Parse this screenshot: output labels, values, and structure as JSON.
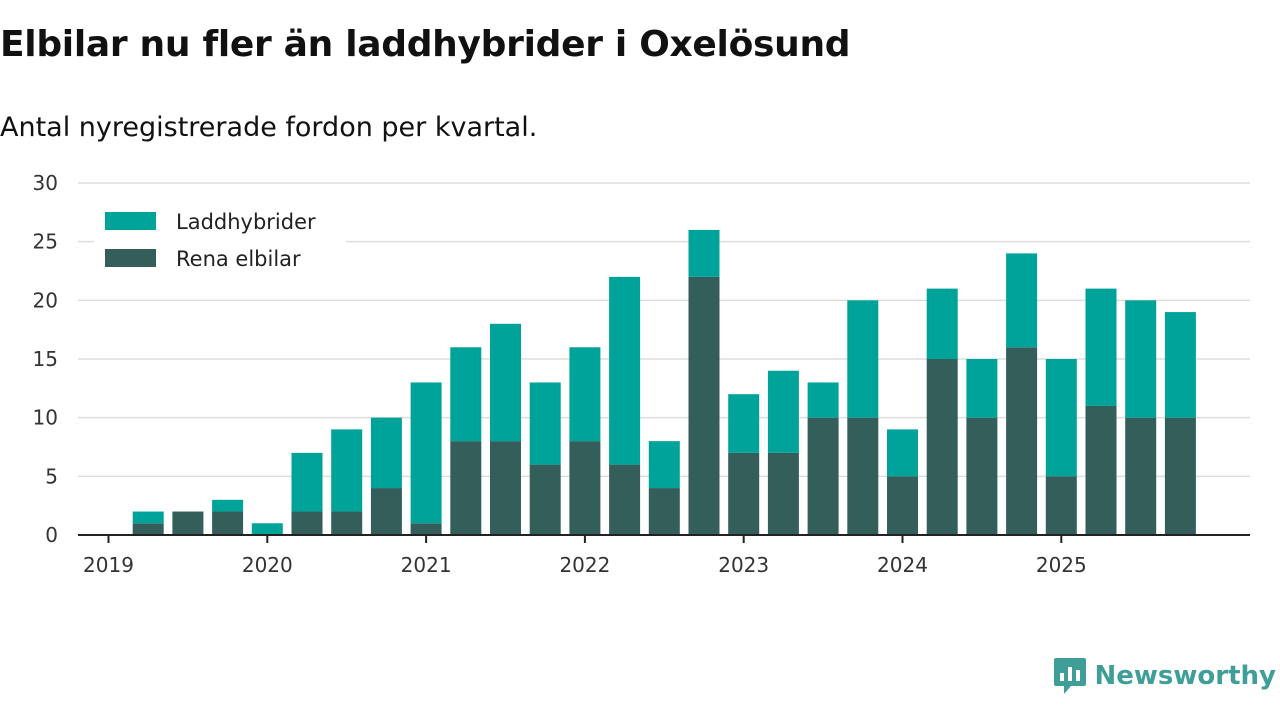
{
  "title": "Elbilar nu fler än laddhybrider i Oxelösund",
  "subtitle": "Antal nyregistrerade fordon per kvartal.",
  "brand": {
    "name": "Newsworthy",
    "icon": "newsworthy-logo-icon"
  },
  "colors": {
    "laddhybrider": "#00a39a",
    "rena_elbilar": "#335e5a",
    "grid": "#dddddd",
    "axis": "#222222",
    "brand": "#3f9f98"
  },
  "chart_data": {
    "type": "bar",
    "stacked": true,
    "categories": [
      "2019 Q1",
      "2019 Q2",
      "2019 Q3",
      "2019 Q4",
      "2020 Q1",
      "2020 Q2",
      "2020 Q3",
      "2020 Q4",
      "2021 Q1",
      "2021 Q2",
      "2021 Q3",
      "2021 Q4",
      "2022 Q1",
      "2022 Q2",
      "2022 Q3",
      "2022 Q4",
      "2023 Q1",
      "2023 Q2",
      "2023 Q3",
      "2023 Q4",
      "2024 Q1",
      "2024 Q2",
      "2024 Q3",
      "2024 Q4",
      "2025 Q1",
      "2025 Q2",
      "2025 Q3"
    ],
    "series": [
      {
        "name": "Rena elbilar",
        "values": [
          1,
          2,
          2,
          0,
          2,
          2,
          4,
          1,
          8,
          8,
          6,
          8,
          6,
          4,
          22,
          7,
          7,
          10,
          10,
          5,
          15,
          10,
          16,
          5,
          11,
          10,
          10
        ]
      },
      {
        "name": "Laddhybrider",
        "values": [
          1,
          0,
          1,
          1,
          5,
          7,
          6,
          12,
          8,
          10,
          7,
          8,
          16,
          4,
          4,
          5,
          7,
          3,
          10,
          4,
          6,
          5,
          8,
          10,
          10,
          10,
          9
        ]
      }
    ],
    "x_ticks": [
      "2019",
      "2020",
      "2021",
      "2022",
      "2023",
      "2024",
      "2025"
    ],
    "y_ticks": [
      "0",
      "5",
      "10",
      "15",
      "20",
      "25",
      "30"
    ],
    "ylim": [
      0,
      30
    ],
    "legend_position": "top-left",
    "grid": true
  }
}
